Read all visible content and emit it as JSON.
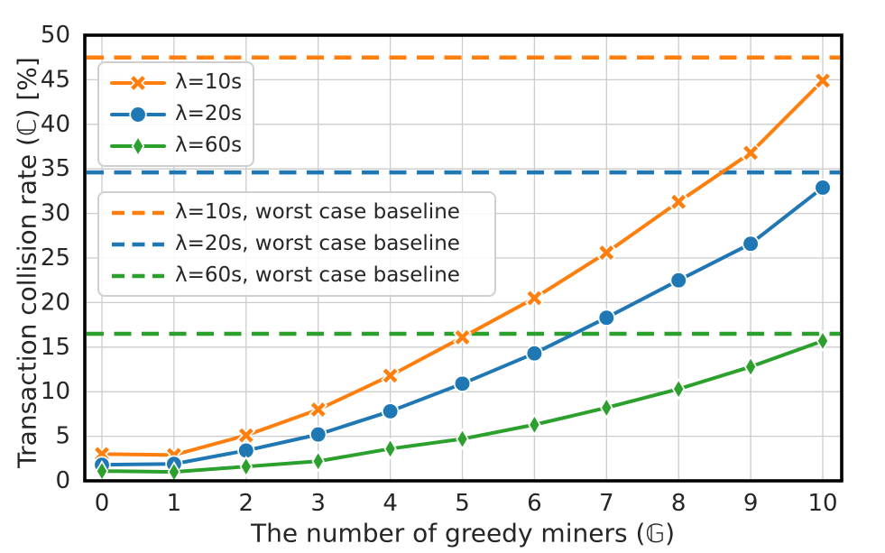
{
  "figure": {
    "x_axis_label": "The number of greedy miners (𝔾)",
    "y_axis_label": "Transaction collision rate (ℂ) [%]"
  },
  "colors": {
    "orange": "#ff7f0e",
    "blue": "#1f77b4",
    "green": "#2ca02c",
    "grid": "#cccccc",
    "spine": "#000000",
    "text": "#262626"
  },
  "chart_data": {
    "type": "line",
    "title": "",
    "xlabel": "The number of greedy miners (𝔾)",
    "ylabel": "Transaction collision rate (ℂ) [%]",
    "x": [
      0,
      1,
      2,
      3,
      4,
      5,
      6,
      7,
      8,
      9,
      10
    ],
    "x_ticks": [
      "0",
      "1",
      "2",
      "3",
      "4",
      "5",
      "6",
      "7",
      "8",
      "9",
      "10"
    ],
    "y_ticks": [
      "0",
      "5",
      "10",
      "15",
      "20",
      "25",
      "30",
      "35",
      "40",
      "45",
      "50"
    ],
    "y_tick_values": [
      0,
      5,
      10,
      15,
      20,
      25,
      30,
      35,
      40,
      45,
      50
    ],
    "xlim": [
      -0.29,
      10.26
    ],
    "ylim": [
      0,
      50
    ],
    "grid": true,
    "legend_positions": [
      "upper left (solid series)",
      "center left (dashed baselines)"
    ],
    "series": [
      {
        "name": "λ=10s",
        "marker": "x",
        "linestyle": "solid",
        "color": "#ff7f0e",
        "values": [
          3.0,
          2.9,
          5.1,
          8.0,
          11.8,
          16.1,
          20.5,
          25.6,
          31.3,
          36.8,
          44.9
        ]
      },
      {
        "name": "λ=20s",
        "marker": "circle",
        "linestyle": "solid",
        "color": "#1f77b4",
        "values": [
          1.8,
          1.9,
          3.4,
          5.2,
          7.8,
          10.9,
          14.3,
          18.3,
          22.5,
          26.6,
          32.9
        ]
      },
      {
        "name": "λ=60s",
        "marker": "diamond",
        "linestyle": "solid",
        "color": "#2ca02c",
        "values": [
          1.1,
          1.0,
          1.6,
          2.2,
          3.6,
          4.7,
          6.3,
          8.2,
          10.3,
          12.8,
          15.7
        ]
      }
    ],
    "baselines": [
      {
        "name": "λ=10s, worst case baseline",
        "color": "#ff7f0e",
        "linestyle": "dashed",
        "value": 47.5
      },
      {
        "name": "λ=20s, worst case baseline",
        "color": "#1f77b4",
        "linestyle": "dashed",
        "value": 34.6
      },
      {
        "name": "λ=60s, worst case baseline",
        "color": "#2ca02c",
        "linestyle": "dashed",
        "value": 16.5
      }
    ]
  }
}
